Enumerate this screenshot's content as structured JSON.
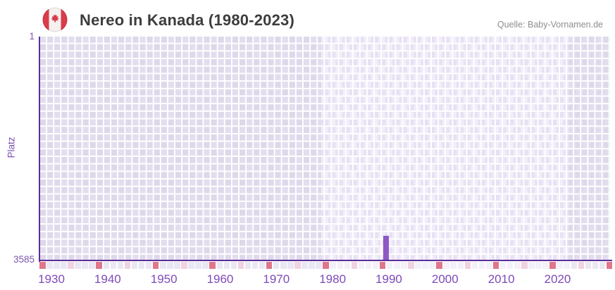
{
  "header": {
    "title": "Nereo in Kanada (1980-2023)",
    "source": "Quelle: Baby-Vornamen.de"
  },
  "chart_data": {
    "type": "bar",
    "title": "Nereo in Kanada (1980-2023)",
    "ylabel": "Platz",
    "y_top_label": "1",
    "y_bottom_label": "3585",
    "ylim": [
      1,
      3585
    ],
    "y_inverted": true,
    "x_tick_labels": [
      1930,
      1940,
      1950,
      1960,
      1970,
      1980,
      1990,
      2000,
      2010,
      2020
    ],
    "x_range": [
      1928,
      2029
    ],
    "data_years_range": [
      1980,
      2023
    ],
    "highlight_band_years": [
      1978,
      2022
    ],
    "grid": true,
    "legend": false,
    "series": [
      {
        "name": "Platz",
        "points": [
          {
            "year": 1989,
            "rank": 3185
          }
        ]
      }
    ],
    "bottom_strip": {
      "count": 81,
      "period": 8,
      "strong_index": 0,
      "soft_index": 4
    }
  },
  "colors": {
    "bar": "#8d58c6",
    "axis": "#5b2e99",
    "tick_label": "#7e4ab8",
    "title_text": "#3d3d3d",
    "source_text": "#8e8e8e",
    "flag_red": "#d93c4a",
    "strip_strong": "#e0768b",
    "strip_soft": "#f0d2e0",
    "strip_base_dark": "#eae7f4",
    "strip_base_light": "#f3f0fa"
  }
}
